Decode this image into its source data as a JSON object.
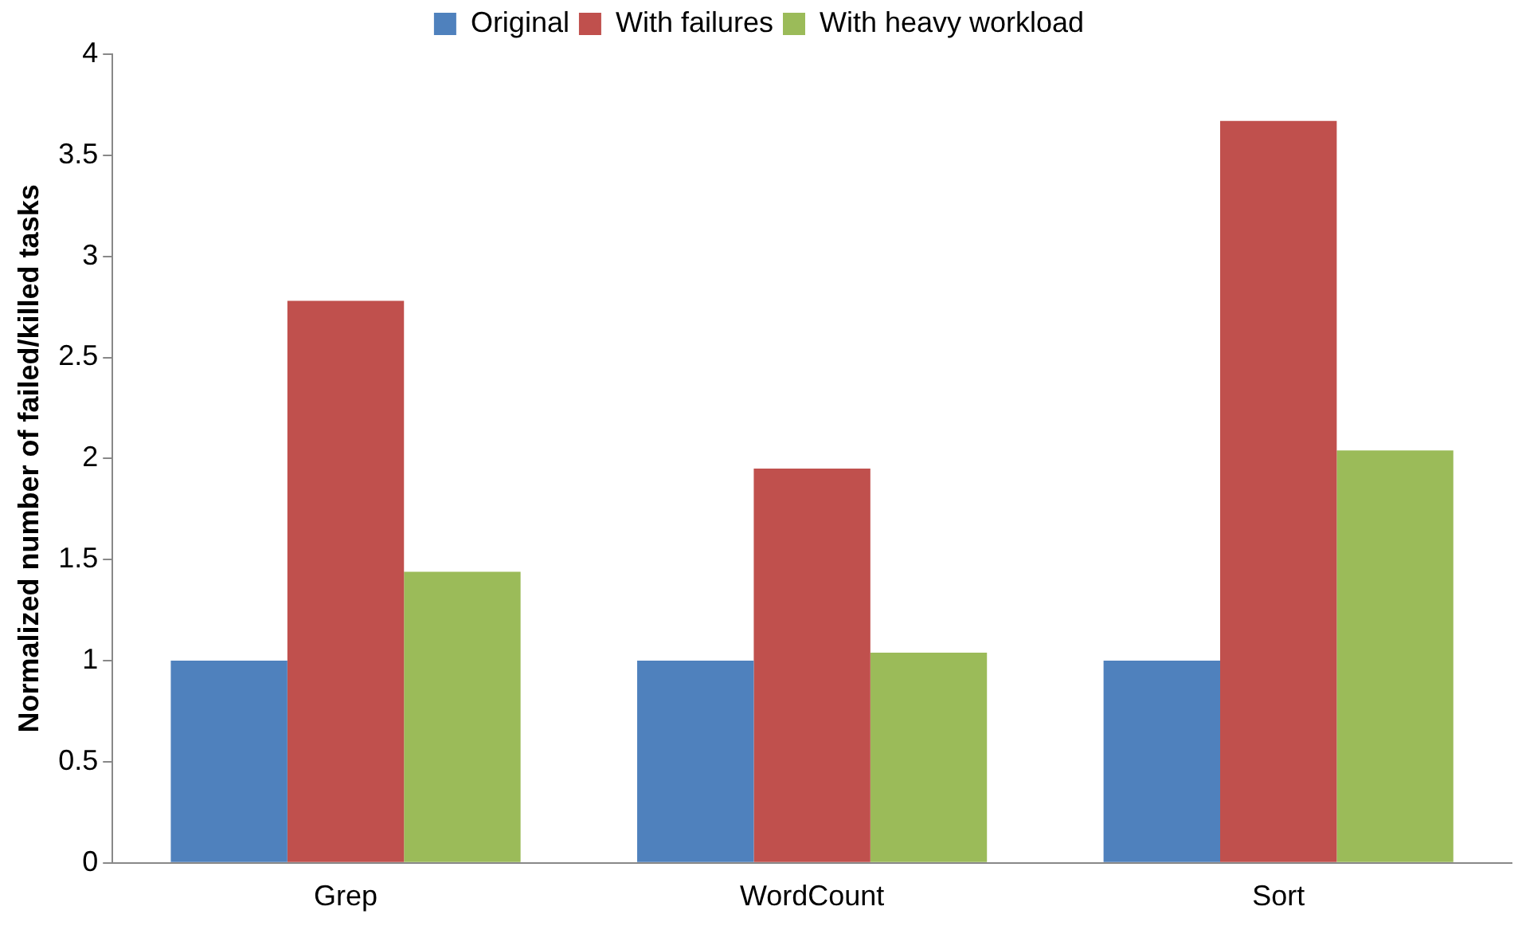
{
  "chart_data": {
    "type": "bar",
    "ylabel": "Normalized number of failed/killed tasks",
    "categories": [
      "Grep",
      "WordCount",
      "Sort"
    ],
    "series": [
      {
        "name": "Original",
        "color": "#4f81bd",
        "values": [
          1,
          1,
          1
        ]
      },
      {
        "name": "With failures",
        "color": "#c0504d",
        "values": [
          2.78,
          1.95,
          3.67
        ]
      },
      {
        "name": "With heavy workload",
        "color": "#9bbb59",
        "values": [
          1.44,
          1.04,
          2.04
        ]
      }
    ],
    "ylim": [
      0,
      4
    ],
    "yticks": [
      0,
      0.5,
      1,
      1.5,
      2,
      2.5,
      3,
      3.5,
      4
    ],
    "grid": false,
    "legend": "top"
  }
}
